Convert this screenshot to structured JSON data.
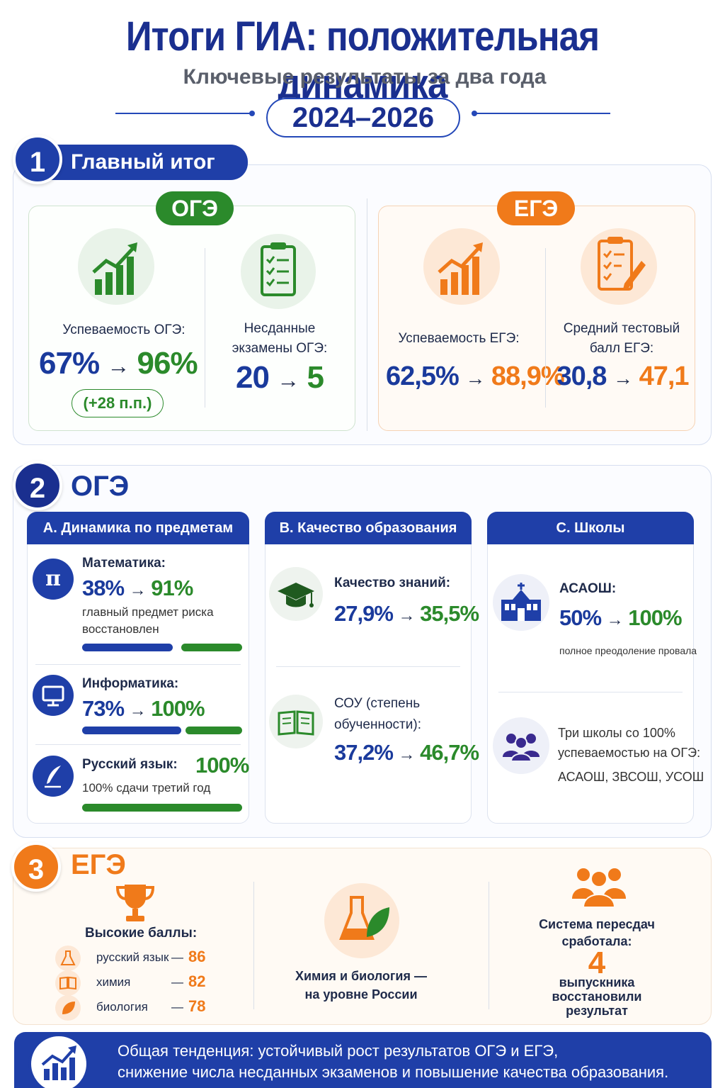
{
  "header": {
    "title": "Итоги ГИА: положительная динамика",
    "subtitle": "Ключевые результаты за два года",
    "years": "2024–2026"
  },
  "s1": {
    "num": "1",
    "title": "Главный итог",
    "oge": {
      "tag": "ОГЭ",
      "perf_label": "Успеваемость ОГЭ:",
      "perf_from": "67%",
      "perf_to": "96%",
      "perf_delta": "(+28 п.п.)",
      "fail_label_1": "Несданные",
      "fail_label_2": "экзамены ОГЭ:",
      "fail_from": "20",
      "fail_to": "5"
    },
    "ege": {
      "tag": "ЕГЭ",
      "perf_label": "Успеваемость ЕГЭ:",
      "perf_from": "62,5%",
      "perf_to": "88,9%",
      "score_label_1": "Средний тестовый",
      "score_label_2": "балл ЕГЭ:",
      "score_from": "30,8",
      "score_to": "47,1"
    }
  },
  "s2": {
    "num": "2",
    "title": "ОГЭ",
    "colA": {
      "head": "A. Динамика по предметам",
      "math_name": "Математика:",
      "math_from": "38%",
      "math_to": "91%",
      "math_note_1": "главный предмет риска",
      "math_note_2": "восстановлен",
      "inf_name": "Информатика:",
      "inf_from": "73%",
      "inf_to": "100%",
      "rus_name": "Русский язык:",
      "rus_val": "100%",
      "rus_note": "100% сдачи третий год",
      "math_icon": "π"
    },
    "colB": {
      "head": "B. Качество образования",
      "q_name": "Качество знаний:",
      "q_from": "27,9%",
      "q_to": "35,5%",
      "sou_name_1": "СОУ (степень",
      "sou_name_2": "обученности):",
      "sou_from": "37,2%",
      "sou_to": "46,7%"
    },
    "colC": {
      "head": "C. Школы",
      "school_name": "АСАОШ:",
      "school_from": "50%",
      "school_to": "100%",
      "school_note": "полное преодоление провала",
      "three_1": "Три школы со 100%",
      "three_2": "успеваемостью на ОГЭ:",
      "three_list": "АСАОШ, ЗВСОШ, УСОШ"
    }
  },
  "s3": {
    "num": "3",
    "title": "ЕГЭ",
    "high_title": "Высокие баллы:",
    "scores": [
      {
        "subject": "русский язык",
        "dash": "—",
        "value": "86"
      },
      {
        "subject": "химия",
        "dash": "—",
        "value": "82"
      },
      {
        "subject": "биология",
        "dash": "—",
        "value": "78"
      }
    ],
    "chem_1": "Химия и биология —",
    "chem_2": "на уровне России",
    "retake_1": "Система пересдач",
    "retake_2": "сработала:",
    "retake_num": "4",
    "retake_3": "выпускника",
    "retake_4": "восстановили",
    "retake_5": "результат"
  },
  "footer": {
    "line1": "Общая тенденция:  устойчивый рост результатов ОГЭ и ЕГЭ,",
    "line2": "снижение числа несданных  экзаменов и повышение качества образования."
  },
  "arrow": "→",
  "colors": {
    "blue": "#1f3fa8",
    "green": "#2b8a2b",
    "orange": "#f07a1a"
  }
}
